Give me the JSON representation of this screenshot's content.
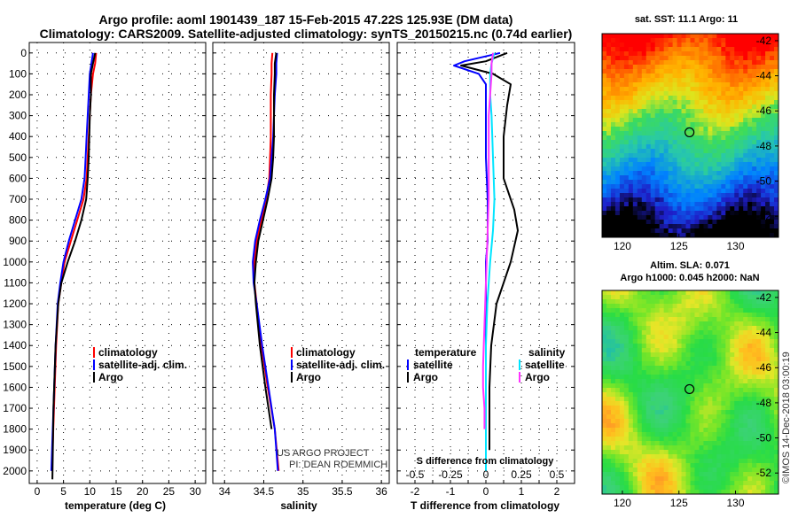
{
  "header": {
    "title_line1": "Argo profile: aoml 1901439_187 15-Feb-2015 47.22S 125.93E (DM data)",
    "title_line2": "Climatology: CARS2009. Satellite-adjusted climatology: synTS_20150215.nc (0.74d earlier)"
  },
  "colors": {
    "climatology": "#ff0000",
    "satellite": "#0000ff",
    "argo": "#000000",
    "salinity_satellite": "#00e5ff",
    "salinity_argo": "#ff33ff"
  },
  "depth_axis": {
    "ticks": [
      "0",
      "100",
      "200",
      "300",
      "400",
      "500",
      "600",
      "700",
      "800",
      "900",
      "1000",
      "1100",
      "1200",
      "1300",
      "1400",
      "1500",
      "1600",
      "1700",
      "1800",
      "1900",
      "2000"
    ],
    "ylim": [
      -50,
      2060
    ]
  },
  "chart_data": [
    {
      "type": "line",
      "xlabel": "temperature (deg C)",
      "xticks": [
        "0",
        "5",
        "10",
        "15",
        "20",
        "25",
        "30"
      ],
      "xlim": [
        -1.5,
        32
      ],
      "legend": [
        "climatology",
        "satellite-adj. clim.",
        "Argo"
      ],
      "series": [
        {
          "name": "climatology",
          "color_key": "climatology",
          "x": [
            11.2,
            11.0,
            10.6,
            10.2,
            10.0,
            9.8,
            9.6,
            9.4,
            8.8,
            7.6,
            6.4,
            5.2,
            4.6,
            4.0,
            3.6,
            3.2,
            2.8
          ],
          "y": [
            0,
            50,
            100,
            200,
            300,
            400,
            500,
            600,
            700,
            800,
            900,
            1000,
            1100,
            1200,
            1400,
            1700,
            2000
          ]
        },
        {
          "name": "satellite-adj. clim.",
          "color_key": "satellite",
          "x": [
            10.6,
            10.3,
            10.0,
            9.8,
            9.6,
            9.4,
            9.2,
            9.0,
            8.4,
            7.2,
            6.0,
            5.0,
            4.4,
            3.9,
            3.5,
            3.1,
            2.7
          ],
          "y": [
            0,
            50,
            100,
            200,
            300,
            400,
            500,
            600,
            700,
            800,
            900,
            1000,
            1100,
            1200,
            1400,
            1700,
            2000
          ]
        },
        {
          "name": "Argo",
          "color_key": "argo",
          "x": [
            11.0,
            10.6,
            10.2,
            10.2,
            10.0,
            9.9,
            9.8,
            9.6,
            9.3,
            8.4,
            7.2,
            5.8,
            4.6,
            4.0,
            3.5,
            3.1,
            2.9
          ],
          "y": [
            0,
            50,
            100,
            200,
            300,
            400,
            500,
            600,
            700,
            800,
            900,
            1000,
            1100,
            1200,
            1400,
            1700,
            2040
          ]
        }
      ]
    },
    {
      "type": "line",
      "xlabel": "salinity",
      "xticks": [
        "34",
        "34.5",
        "35",
        "35.5",
        "36"
      ],
      "xlim": [
        33.85,
        36.1
      ],
      "legend": [
        "climatology",
        "satellite-adj. clim.",
        "Argo"
      ],
      "series": [
        {
          "name": "climatology",
          "color_key": "climatology",
          "x": [
            34.61,
            34.6,
            34.6,
            34.59,
            34.59,
            34.59,
            34.58,
            34.57,
            34.53,
            34.47,
            34.41,
            34.38,
            34.38,
            34.41,
            34.47,
            34.55,
            34.64,
            34.69
          ],
          "y": [
            0,
            50,
            100,
            200,
            300,
            400,
            500,
            600,
            700,
            800,
            900,
            1000,
            1100,
            1200,
            1400,
            1600,
            1800,
            2000
          ]
        },
        {
          "name": "satellite-adj. clim.",
          "color_key": "satellite",
          "x": [
            34.67,
            34.66,
            34.66,
            34.64,
            34.63,
            34.62,
            34.6,
            34.58,
            34.52,
            34.45,
            34.39,
            34.36,
            34.37,
            34.41,
            34.48,
            34.56,
            34.64,
            34.68
          ],
          "y": [
            0,
            50,
            100,
            200,
            300,
            400,
            500,
            600,
            700,
            800,
            900,
            1000,
            1100,
            1200,
            1400,
            1600,
            1800,
            2000
          ]
        },
        {
          "name": "Argo",
          "color_key": "argo",
          "x": [
            34.66,
            34.64,
            34.64,
            34.63,
            34.63,
            34.63,
            34.62,
            34.6,
            34.55,
            34.49,
            34.43,
            34.4,
            34.38,
            34.4,
            34.45,
            34.52,
            34.6
          ],
          "y": [
            0,
            50,
            100,
            200,
            300,
            400,
            500,
            600,
            700,
            800,
            900,
            1000,
            1100,
            1200,
            1400,
            1600,
            1800
          ]
        }
      ],
      "credits": [
        "US ARGO PROJECT",
        "PI: DEAN ROEMMICH"
      ]
    },
    {
      "type": "line",
      "xlabel": "T difference from climatology",
      "xticks": [
        "-2",
        "-1.5",
        "-1",
        "-0.5",
        "0",
        "0.5",
        "1",
        "1.5",
        "2"
      ],
      "xticks_shown": [
        "-2",
        "-1",
        "0",
        "1",
        "2"
      ],
      "xlim": [
        -2.5,
        2.5
      ],
      "top_axis_label": "S difference from climatology",
      "top_ticks": [
        "-0.5",
        "-0.25",
        "0",
        "0.25",
        "0.5"
      ],
      "top_xlim": [
        -0.625,
        0.625
      ],
      "legend_temperature": {
        "title": "temperature",
        "items": [
          "satellite",
          "Argo"
        ]
      },
      "legend_salinity": {
        "title": "salinity",
        "items": [
          "satellite",
          "Argo"
        ]
      },
      "series": [
        {
          "name": "satellite",
          "group": "temperature",
          "color_key": "satellite",
          "axis": "T",
          "x": [
            0.4,
            -0.6,
            -0.9,
            -0.2,
            0.0,
            0.0,
            0.0,
            0.05,
            0.05,
            0.05,
            0.0,
            0.0,
            0.0,
            0.0,
            0.0,
            0.0
          ],
          "y": [
            0,
            40,
            60,
            100,
            150,
            300,
            500,
            700,
            800,
            900,
            1000,
            1200,
            1400,
            1600,
            1800,
            2000
          ]
        },
        {
          "name": "Argo",
          "group": "temperature",
          "color_key": "argo",
          "axis": "T",
          "x": [
            0.6,
            0.0,
            -0.7,
            0.2,
            0.7,
            0.6,
            0.5,
            0.5,
            0.8,
            0.9,
            0.7,
            0.5,
            0.3,
            0.15,
            0.1,
            0.1,
            0.1
          ],
          "y": [
            0,
            40,
            60,
            100,
            150,
            250,
            400,
            600,
            750,
            850,
            1000,
            1100,
            1200,
            1400,
            1600,
            1800,
            1900
          ]
        },
        {
          "name": "satellite",
          "group": "salinity",
          "color_key": "salinity_satellite",
          "axis": "S",
          "x": [
            0.06,
            0.04,
            0.03,
            0.03,
            0.04,
            0.05,
            0.06,
            0.05,
            0.03,
            0.02,
            0.01,
            0.0,
            0.0,
            0.0,
            0.0
          ],
          "y": [
            0,
            50,
            100,
            200,
            300,
            500,
            700,
            850,
            1000,
            1100,
            1200,
            1400,
            1600,
            1800,
            2000
          ]
        },
        {
          "name": "Argo",
          "group": "salinity",
          "color_key": "salinity_argo",
          "axis": "S",
          "x": [
            0.05,
            0.04,
            0.04,
            0.03,
            0.02,
            0.02,
            0.02,
            0.01,
            0.0,
            -0.01,
            -0.02,
            -0.02,
            -0.01,
            -0.01
          ],
          "y": [
            0,
            50,
            100,
            200,
            300,
            500,
            700,
            900,
            1100,
            1300,
            1500,
            1600,
            1700,
            1800
          ]
        }
      ]
    },
    {
      "type": "heatmap",
      "title": "sat. SST: 11.1  Argo: 11",
      "xticks": [
        "120",
        "125",
        "130"
      ],
      "yticks": [
        "-42",
        "-44",
        "-46",
        "-48",
        "-50",
        "-52"
      ],
      "xlim": [
        118.2,
        133.8
      ],
      "ylim": [
        -53.2,
        -41.6
      ],
      "marker": {
        "lon": 125.93,
        "lat": -47.22
      }
    },
    {
      "type": "heatmap",
      "title_line1": "Altim. SLA: 0.071",
      "title_line2": "Argo h1000: 0.045  h2000: NaN",
      "xticks": [
        "120",
        "125",
        "130"
      ],
      "yticks": [
        "-42",
        "-44",
        "-46",
        "-48",
        "-50",
        "-52"
      ],
      "xlim": [
        118.2,
        133.8
      ],
      "ylim": [
        -53.2,
        -41.6
      ],
      "marker": {
        "lon": 125.93,
        "lat": -47.22
      }
    }
  ],
  "side_credit": "©IMOS 14-Dec-2018 03:00:19"
}
